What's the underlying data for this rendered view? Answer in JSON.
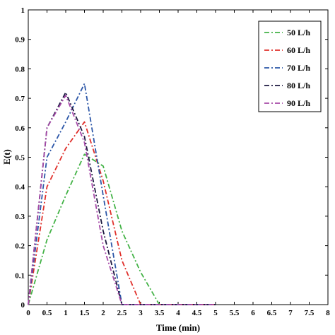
{
  "chart_data": {
    "type": "line",
    "title": "",
    "xlabel": "Time (min)",
    "ylabel": "E(t)",
    "xlim": [
      0,
      8
    ],
    "ylim": [
      0,
      1
    ],
    "x_ticks": [
      "0",
      "0.5",
      "1",
      "1.5",
      "2",
      "2.5",
      "3",
      "3.5",
      "4",
      "4.5",
      "5",
      "5.5",
      "6",
      "6.5",
      "7",
      "7.5",
      "8"
    ],
    "y_ticks": [
      "0",
      "0.1",
      "0.2",
      "0.3",
      "0.4",
      "0.5",
      "0.6",
      "0.7",
      "0.8",
      "0.9",
      "1"
    ],
    "grid": false,
    "legend_position": "top-right",
    "series": [
      {
        "name": "50 L/h",
        "color": "#44b347",
        "x": [
          0,
          0.5,
          1,
          1.5,
          2,
          2.5,
          3,
          3.5,
          4,
          4.5,
          5
        ],
        "y": [
          0,
          0.22,
          0.37,
          0.51,
          0.47,
          0.25,
          0.11,
          0,
          0,
          0,
          0
        ]
      },
      {
        "name": "60 L/h",
        "color": "#e0302b",
        "x": [
          0,
          0.5,
          1,
          1.5,
          2,
          2.5,
          3,
          3.5,
          4,
          4.5,
          5
        ],
        "y": [
          0,
          0.4,
          0.53,
          0.62,
          0.42,
          0.15,
          0,
          0,
          0,
          0,
          0
        ]
      },
      {
        "name": "70 L/h",
        "color": "#2d57a8",
        "x": [
          0,
          0.5,
          1,
          1.5,
          2,
          2.5,
          3,
          3.5,
          4,
          4.5,
          5
        ],
        "y": [
          0,
          0.5,
          0.62,
          0.75,
          0.37,
          0,
          0,
          0,
          0,
          0,
          0
        ]
      },
      {
        "name": "80 L/h",
        "color": "#1c1840",
        "x": [
          0,
          0.5,
          1,
          1.5,
          2,
          2.5,
          3,
          3.5,
          4,
          4.5,
          5
        ],
        "y": [
          0,
          0.6,
          0.72,
          0.57,
          0.25,
          0,
          0,
          0,
          0,
          0,
          0
        ]
      },
      {
        "name": "90 L/h",
        "color": "#a64aa8",
        "x": [
          0,
          0.5,
          1,
          1.5,
          2,
          2.5,
          3,
          3.5,
          4,
          4.5,
          5
        ],
        "y": [
          0,
          0.6,
          0.71,
          0.55,
          0.2,
          0,
          0,
          0,
          0,
          0,
          0
        ]
      }
    ]
  }
}
